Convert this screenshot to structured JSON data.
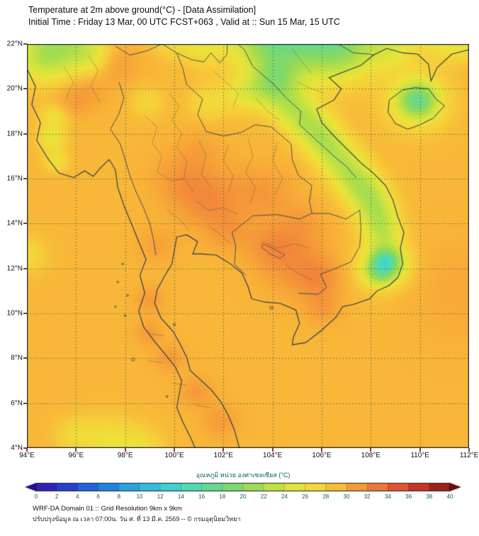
{
  "header": {
    "title": "Temperature at 2m above ground(°C) - [Data Assimilation]",
    "subtitle": "Initial Time : Friday 13 Mar, 00 UTC FCST+063 , Valid at :: Sun 15 Mar, 15 UTC"
  },
  "map": {
    "lat_labels": [
      "22°N",
      "20°N",
      "18°N",
      "16°N",
      "14°N",
      "12°N",
      "10°N",
      "8°N",
      "6°N",
      "4°N"
    ],
    "lon_labels": [
      "94°E",
      "96°E",
      "98°E",
      "100°E",
      "102°E",
      "104°E",
      "106°E",
      "108°E",
      "110°E",
      "112°E"
    ]
  },
  "colorbar": {
    "label": "อุณหภูมิ หน่วย องศาเซลเซียส (°C)",
    "ticks": [
      0,
      2,
      4,
      6,
      8,
      10,
      12,
      14,
      16,
      18,
      20,
      22,
      24,
      26,
      28,
      30,
      32,
      34,
      36,
      38,
      40
    ],
    "min": 0,
    "max": 40,
    "arrow_left_color": "#2a0c8e",
    "arrow_right_color": "#670d11",
    "stops": [
      [
        0,
        "#3a16ad"
      ],
      [
        2,
        "#2b2fc4"
      ],
      [
        4,
        "#2050d8"
      ],
      [
        6,
        "#1f74e0"
      ],
      [
        8,
        "#2493e2"
      ],
      [
        10,
        "#2eb3de"
      ],
      [
        12,
        "#38cad8"
      ],
      [
        14,
        "#46d8c2"
      ],
      [
        16,
        "#58dca4"
      ],
      [
        18,
        "#6fd981"
      ],
      [
        20,
        "#8cd95f"
      ],
      [
        22,
        "#aede4c"
      ],
      [
        24,
        "#d2e43f"
      ],
      [
        26,
        "#eee23a"
      ],
      [
        28,
        "#f7cd39"
      ],
      [
        30,
        "#f8ab38"
      ],
      [
        32,
        "#f28a3a"
      ],
      [
        34,
        "#e9653a"
      ],
      [
        36,
        "#d8402b"
      ],
      [
        38,
        "#b52a20"
      ],
      [
        40,
        "#8d1616"
      ]
    ]
  },
  "footer": {
    "line1": "WRF-DA Domain 01 :: Grid Resolution 9km x 9km",
    "line2": "ปรับปรุงข้อมูล ณ เวลา 07:00น. วัน ศ. ที่ 13 มี.ค. 2569 -- © กรมอุตุนิยมวิทยา"
  },
  "chart_data": {
    "type": "heatmap",
    "title": "Temperature at 2m above ground (°C)",
    "units": "°C",
    "lon_range": [
      94,
      112
    ],
    "lat_range": [
      4,
      22
    ],
    "grid_step_deg": 2,
    "colorbar_range": [
      0,
      40
    ],
    "colorbar_step": 2,
    "approx_field_summary": [
      {
        "region": "most of Thailand, Cambodia, Gulf of Thailand, Andaman Sea",
        "temp_c": "28-31"
      },
      {
        "region": "central Thailand plain and Cambodian lowlands",
        "temp_c": "30-32"
      },
      {
        "region": "northern Vietnam / northern Laos / Annamite range",
        "temp_c": "19-24"
      },
      {
        "region": "Hainan interior and south-Vietnam highlands (coolest spots)",
        "temp_c": "16-18"
      },
      {
        "region": "far north Myanmar mountains",
        "temp_c": "21-24"
      }
    ],
    "field_model": {
      "base_c": 29.3,
      "blobs": [
        [
          105.4,
          22.6,
          2.0,
          -10
        ],
        [
          103.6,
          22.3,
          1.4,
          -6
        ],
        [
          106.9,
          21.8,
          1.3,
          -5
        ],
        [
          108.8,
          22.0,
          1.1,
          -4
        ],
        [
          110.8,
          22.2,
          0.9,
          -3
        ],
        [
          111.7,
          21.9,
          0.7,
          -2.5
        ],
        [
          104.2,
          20.6,
          0.9,
          -4
        ],
        [
          103.9,
          20.0,
          0.9,
          -4
        ],
        [
          102.8,
          19.8,
          0.8,
          -3
        ],
        [
          101.4,
          19.4,
          0.8,
          -2.5
        ],
        [
          109.9,
          19.5,
          0.75,
          -8
        ],
        [
          109.9,
          19.4,
          1.3,
          -4
        ],
        [
          104.7,
          19.3,
          0.85,
          -4
        ],
        [
          105.35,
          18.6,
          0.85,
          -4.5
        ],
        [
          105.95,
          17.9,
          0.85,
          -4.5
        ],
        [
          106.45,
          17.2,
          0.85,
          -4
        ],
        [
          107.0,
          16.5,
          0.85,
          -4
        ],
        [
          107.5,
          15.8,
          0.85,
          -4.5
        ],
        [
          108.0,
          15.1,
          0.85,
          -4.5
        ],
        [
          108.3,
          14.35,
          0.8,
          -4
        ],
        [
          108.5,
          13.6,
          0.75,
          -4
        ],
        [
          108.65,
          12.3,
          0.75,
          -7
        ],
        [
          108.35,
          11.8,
          0.6,
          -5
        ],
        [
          108.45,
          12.15,
          1.2,
          -3
        ],
        [
          108.6,
          12.35,
          0.45,
          -4
        ],
        [
          94.7,
          21.5,
          1.2,
          -6
        ],
        [
          95.9,
          22.2,
          1.3,
          -5
        ],
        [
          96.7,
          21.4,
          0.8,
          -3
        ],
        [
          99.9,
          22.2,
          0.8,
          -2.5
        ],
        [
          101.2,
          21.9,
          0.9,
          -3
        ],
        [
          95.15,
          18.8,
          0.6,
          -3.5
        ],
        [
          95.0,
          17.8,
          0.55,
          -3.5
        ],
        [
          95.2,
          16.8,
          0.5,
          -3
        ],
        [
          98.9,
          19.4,
          0.7,
          -2
        ],
        [
          97.3,
          4.3,
          1.1,
          -3
        ],
        [
          98.7,
          4.0,
          0.9,
          -2.5
        ],
        [
          95.9,
          4.6,
          0.8,
          -2
        ],
        [
          94.0,
          12.6,
          0.8,
          -2.5
        ],
        [
          100.4,
          15.9,
          1.2,
          2
        ],
        [
          101.3,
          14.8,
          1.1,
          1.8
        ],
        [
          102.6,
          15.4,
          1.3,
          1.2
        ],
        [
          103.9,
          15.3,
          1.1,
          1.3
        ],
        [
          101.0,
          17.3,
          0.9,
          1.0
        ],
        [
          104.8,
          12.4,
          1.4,
          2.2
        ],
        [
          105.9,
          11.5,
          1.0,
          2.0
        ],
        [
          103.9,
          13.1,
          0.9,
          1.5
        ],
        [
          102.2,
          13.6,
          0.9,
          1.5
        ],
        [
          105.2,
          14.0,
          0.9,
          1.2
        ],
        [
          97.4,
          21.2,
          1.0,
          2.0
        ],
        [
          96.3,
          19.8,
          0.8,
          1.6
        ],
        [
          95.5,
          19.2,
          0.7,
          1.4
        ],
        [
          99.3,
          13.0,
          0.8,
          1.2
        ],
        [
          99.0,
          10.6,
          0.6,
          1.6
        ],
        [
          98.95,
          9.1,
          0.55,
          1.6
        ],
        [
          99.8,
          8.0,
          0.6,
          1.6
        ],
        [
          100.9,
          6.5,
          0.7,
          1.6
        ],
        [
          101.9,
          5.2,
          0.7,
          1.6
        ],
        [
          106.0,
          10.2,
          0.7,
          1.4
        ],
        [
          111.6,
          11.0,
          2.2,
          0.8
        ]
      ]
    }
  }
}
